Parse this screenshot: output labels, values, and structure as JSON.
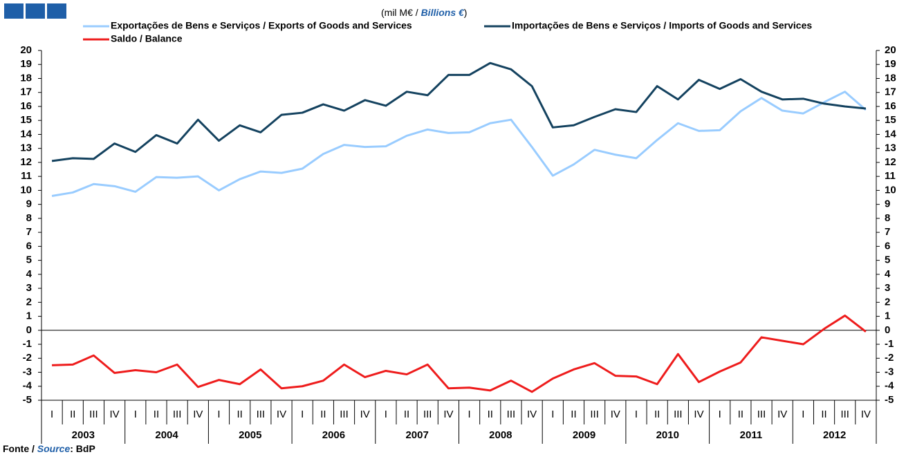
{
  "chart_data": {
    "type": "line",
    "unit_prefix": "(mil M€ /",
    "unit_en": "Billions €",
    "unit_suffix": ")",
    "source_prefix": "Fonte /",
    "source_en": "Source",
    "source_suffix": ": BdP",
    "years": [
      "2003",
      "2004",
      "2005",
      "2006",
      "2007",
      "2008",
      "2009",
      "2010",
      "2011",
      "2012"
    ],
    "categories": [
      "I",
      "II",
      "III",
      "IV",
      "I",
      "II",
      "III",
      "IV",
      "I",
      "II",
      "III",
      "IV",
      "I",
      "II",
      "III",
      "IV",
      "I",
      "II",
      "III",
      "IV",
      "I",
      "II",
      "III",
      "IV",
      "I",
      "II",
      "III",
      "IV",
      "I",
      "II",
      "III",
      "IV",
      "I",
      "II",
      "III",
      "IV",
      "I",
      "II",
      "III",
      "IV"
    ],
    "series": [
      {
        "name": "Exportações de Bens e Serviços / Exports of Goods and Services",
        "color": "#99ccff",
        "values": [
          9.6,
          9.85,
          10.45,
          10.3,
          9.9,
          10.95,
          10.9,
          11.0,
          10.0,
          10.8,
          11.35,
          11.25,
          11.55,
          12.6,
          13.25,
          13.1,
          13.15,
          13.9,
          14.35,
          14.1,
          14.15,
          14.8,
          15.05,
          13.1,
          11.05,
          11.85,
          12.9,
          12.55,
          12.3,
          13.6,
          14.8,
          14.25,
          14.3,
          15.65,
          16.6,
          15.7,
          15.5,
          16.3,
          17.05,
          15.75
        ]
      },
      {
        "name": "Importações de Bens e Serviços / Imports of Goods and Services",
        "color": "#14425f",
        "values": [
          12.1,
          12.3,
          12.25,
          13.35,
          12.75,
          13.95,
          13.35,
          15.05,
          13.55,
          14.65,
          14.15,
          15.4,
          15.55,
          16.15,
          15.7,
          16.45,
          16.05,
          17.05,
          16.8,
          18.25,
          18.25,
          19.1,
          18.65,
          17.45,
          14.5,
          14.65,
          15.25,
          15.8,
          15.6,
          17.45,
          16.5,
          17.9,
          17.25,
          17.95,
          17.05,
          16.5,
          16.55,
          16.2,
          16.0,
          15.85
        ]
      },
      {
        "name": "Saldo / Balance",
        "color": "#ee1c1c",
        "values": [
          -2.5,
          -2.45,
          -1.8,
          -3.05,
          -2.85,
          -3.0,
          -2.45,
          -4.05,
          -3.55,
          -3.85,
          -2.8,
          -4.15,
          -4.0,
          -3.6,
          -2.45,
          -3.35,
          -2.9,
          -3.15,
          -2.45,
          -4.15,
          -4.1,
          -4.3,
          -3.6,
          -4.4,
          -3.45,
          -2.8,
          -2.35,
          -3.25,
          -3.3,
          -3.85,
          -1.7,
          -3.7,
          -2.95,
          -2.3,
          -0.5,
          -0.75,
          -1.0,
          0.1,
          1.05,
          -0.1
        ]
      }
    ],
    "ylim": [
      -5,
      20
    ],
    "yticks": [
      -5,
      -4,
      -3,
      -2,
      -1,
      0,
      1,
      2,
      3,
      4,
      5,
      6,
      7,
      8,
      9,
      10,
      11,
      12,
      13,
      14,
      15,
      16,
      17,
      18,
      19,
      20
    ]
  }
}
